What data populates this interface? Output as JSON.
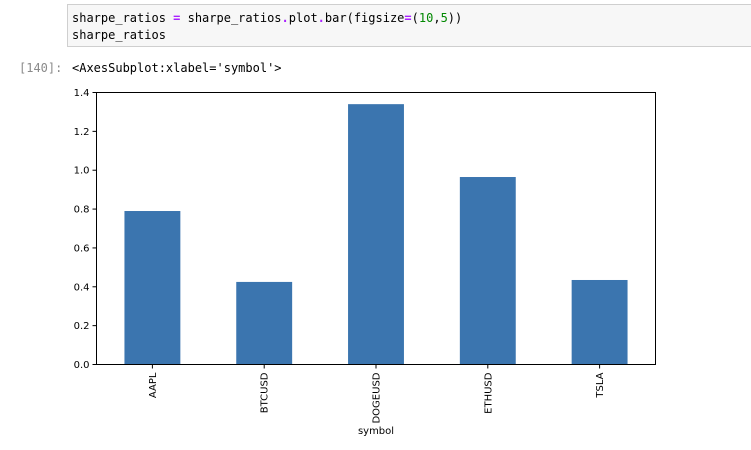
{
  "input_cell": {
    "line1": {
      "var": "sharpe_ratios",
      "eq": " = ",
      "obj": "sharpe_ratios",
      "dot1": ".",
      "attr1": "plot",
      "dot2": ".",
      "attr2": "bar",
      "paren_open": "(",
      "kwarg": "figsize",
      "kw_eq": "=",
      "tuple_open": "(",
      "num1": "10",
      "comma": ",",
      "num2": "5",
      "tuple_close": ")",
      "paren_close": ")"
    },
    "line2": "sharpe_ratios"
  },
  "output_cell": {
    "prompt": "[140]:",
    "repr": "<AxesSubplot:xlabel='symbol'>"
  },
  "chart_data": {
    "type": "bar",
    "categories": [
      "AAPL",
      "BTCUSD",
      "DOGEUSD",
      "ETHUSD",
      "TSLA"
    ],
    "values": [
      0.79,
      0.425,
      1.34,
      0.965,
      0.435
    ],
    "xlabel": "symbol",
    "ylabel": "",
    "ylim": [
      0,
      1.4
    ],
    "yticks": [
      "0.0",
      "0.2",
      "0.4",
      "0.6",
      "0.8",
      "1.0",
      "1.2",
      "1.4"
    ],
    "bar_color": "#3b75af",
    "grid": false,
    "legend": false
  }
}
